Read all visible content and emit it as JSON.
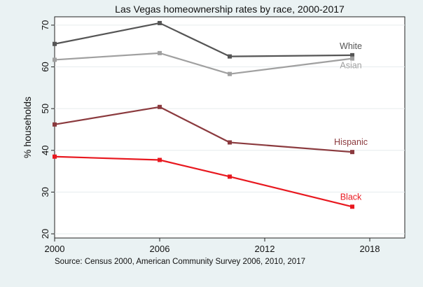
{
  "chart_data": {
    "type": "line",
    "title": "Las Vegas homeownership rates by race, 2000-2017",
    "xlabel": "",
    "ylabel": "% households",
    "xlim": [
      2000,
      2020
    ],
    "ylim": [
      19,
      72
    ],
    "xticks": [
      2000,
      2006,
      2012,
      2018
    ],
    "yticks": [
      20,
      30,
      40,
      50,
      60,
      70
    ],
    "x": [
      2000,
      2006,
      2010,
      2017
    ],
    "series": [
      {
        "name": "White",
        "values": [
          65.5,
          70.5,
          62.5,
          62.8
        ],
        "color": "#555555"
      },
      {
        "name": "Asian",
        "values": [
          61.7,
          63.3,
          58.3,
          62.0
        ],
        "color": "#a0a0a0"
      },
      {
        "name": "Hispanic",
        "values": [
          46.2,
          50.4,
          41.9,
          39.6
        ],
        "color": "#8b3a3e"
      },
      {
        "name": "Black",
        "values": [
          38.5,
          37.7,
          33.7,
          26.5
        ],
        "color": "#e8181f"
      }
    ],
    "source": "Source: Census 2000, American Community Survey 2006, 2010, 2017",
    "grid": true
  }
}
